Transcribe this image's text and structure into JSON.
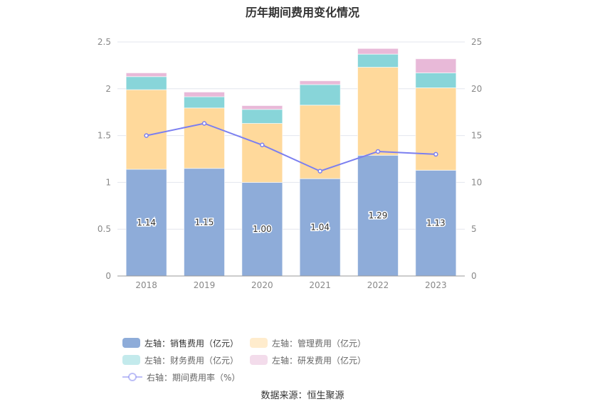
{
  "chart_data": {
    "type": "bar",
    "title": "历年期间费用变化情况",
    "categories": [
      "2018",
      "2019",
      "2020",
      "2021",
      "2022",
      "2023"
    ],
    "y_left": {
      "range": [
        0,
        2.5
      ],
      "ticks": [
        "0",
        "0.5",
        "1",
        "1.5",
        "2",
        "2.5"
      ]
    },
    "y_right": {
      "range": [
        0,
        25
      ],
      "ticks": [
        "0",
        "5",
        "10",
        "15",
        "20",
        "25"
      ]
    },
    "grid": true,
    "legend_position": "bottom",
    "series": [
      {
        "name": "左轴：销售费用（亿元）",
        "type": "bar",
        "axis": "left",
        "color": "#8eacd9",
        "values": [
          1.14,
          1.15,
          1.0,
          1.04,
          1.29,
          1.13
        ],
        "labels": [
          "1.14",
          "1.15",
          "1.00",
          "1.04",
          "1.29",
          "1.13"
        ]
      },
      {
        "name": "左轴：管理费用（亿元）",
        "type": "bar",
        "axis": "left",
        "color": "#ffd99b",
        "values": [
          0.85,
          0.645,
          0.63,
          0.785,
          0.94,
          0.88
        ]
      },
      {
        "name": "左轴：财务费用（亿元）",
        "type": "bar",
        "axis": "left",
        "color": "#88d5d9",
        "values": [
          0.14,
          0.12,
          0.15,
          0.22,
          0.14,
          0.16
        ]
      },
      {
        "name": "左轴：研发费用（亿元）",
        "type": "bar",
        "axis": "left",
        "color": "#e8b9d8",
        "values": [
          0.04,
          0.05,
          0.04,
          0.04,
          0.06,
          0.15
        ]
      },
      {
        "name": "右轴：期间费用率（%）",
        "type": "line",
        "axis": "right",
        "color": "#7b7ff0",
        "values": [
          15.0,
          16.3,
          14.0,
          11.2,
          13.3,
          13.0
        ]
      }
    ]
  },
  "source": "数据来源：恒生聚源"
}
